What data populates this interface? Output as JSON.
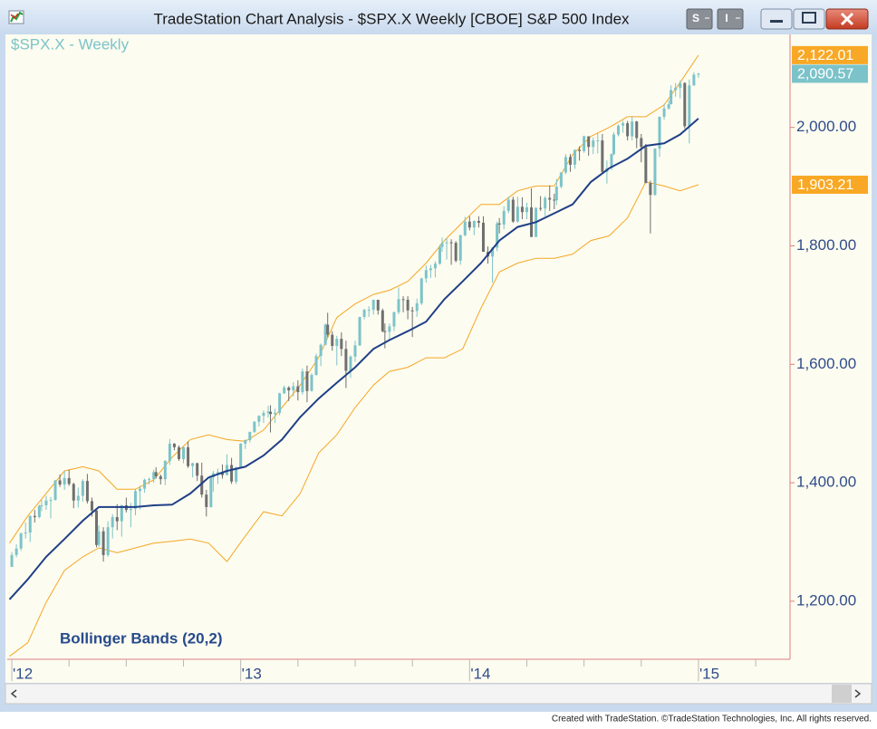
{
  "window": {
    "title": "TradeStation Chart Analysis - $SPX.X Weekly [CBOE] S&P 500 Index",
    "toolbar": [
      "S",
      "I"
    ],
    "footer": "Created with TradeStation. ©TradeStation Technologies, Inc. All rights reserved."
  },
  "chart_data": {
    "type": "candlestick",
    "title": "$SPX.X - Weekly",
    "annotation": "Bollinger Bands (20,2)",
    "xlim": [
      2011.98,
      2015.4
    ],
    "ylim": [
      1102,
      2157
    ],
    "xticks": [
      {
        "value": 2012,
        "label": "'12"
      },
      {
        "value": 2013,
        "label": "'13"
      },
      {
        "value": 2014,
        "label": "'14"
      },
      {
        "value": 2015,
        "label": "'15"
      }
    ],
    "xminor": [
      2012.25,
      2012.5,
      2012.75,
      2013.25,
      2013.5,
      2013.75,
      2014.25,
      2014.5,
      2014.75,
      2015.25
    ],
    "yticks": [
      {
        "value": 1200,
        "label": "1,200.00"
      },
      {
        "value": 1400,
        "label": "1,400.00"
      },
      {
        "value": 1600,
        "label": "1,600.00"
      },
      {
        "value": 1800,
        "label": "1,800.00"
      },
      {
        "value": 2000,
        "label": "2,000.00"
      }
    ],
    "up_color": "#7cc3c9",
    "down_color": "#6f6f6f",
    "x": [
      2012.0,
      2012.02,
      2012.04,
      2012.06,
      2012.08,
      2012.1,
      2012.12,
      2012.13,
      2012.15,
      2012.17,
      2012.19,
      2012.21,
      2012.23,
      2012.25,
      2012.27,
      2012.29,
      2012.31,
      2012.33,
      2012.35,
      2012.37,
      2012.38,
      2012.4,
      2012.42,
      2012.44,
      2012.46,
      2012.48,
      2012.5,
      2012.52,
      2012.54,
      2012.56,
      2012.58,
      2012.6,
      2012.62,
      2012.63,
      2012.65,
      2012.67,
      2012.69,
      2012.71,
      2012.73,
      2012.75,
      2012.77,
      2012.79,
      2012.81,
      2012.83,
      2012.85,
      2012.87,
      2012.88,
      2012.9,
      2012.92,
      2012.94,
      2012.96,
      2012.98,
      2013.0,
      2013.02,
      2013.04,
      2013.06,
      2013.08,
      2013.1,
      2013.12,
      2013.13,
      2013.15,
      2013.17,
      2013.19,
      2013.21,
      2013.23,
      2013.25,
      2013.27,
      2013.29,
      2013.31,
      2013.33,
      2013.35,
      2013.37,
      2013.38,
      2013.4,
      2013.42,
      2013.44,
      2013.46,
      2013.48,
      2013.5,
      2013.52,
      2013.54,
      2013.56,
      2013.58,
      2013.6,
      2013.62,
      2013.63,
      2013.65,
      2013.67,
      2013.69,
      2013.71,
      2013.73,
      2013.75,
      2013.77,
      2013.79,
      2013.81,
      2013.83,
      2013.85,
      2013.87,
      2013.88,
      2013.9,
      2013.92,
      2013.94,
      2013.96,
      2013.98,
      2014.0,
      2014.02,
      2014.04,
      2014.06,
      2014.08,
      2014.1,
      2014.12,
      2014.13,
      2014.15,
      2014.17,
      2014.19,
      2014.21,
      2014.23,
      2014.25,
      2014.27,
      2014.29,
      2014.31,
      2014.33,
      2014.35,
      2014.37,
      2014.38,
      2014.4,
      2014.42,
      2014.44,
      2014.46,
      2014.48,
      2014.5,
      2014.52,
      2014.54,
      2014.56,
      2014.58,
      2014.6,
      2014.62,
      2014.63,
      2014.65,
      2014.67,
      2014.69,
      2014.71,
      2014.73,
      2014.75,
      2014.77,
      2014.79,
      2014.81,
      2014.83,
      2014.85,
      2014.87,
      2014.88,
      2014.9,
      2014.92,
      2014.94,
      2014.96,
      2014.98,
      2015.0
    ],
    "ohlc": [
      [
        1258,
        1283,
        1258,
        1278
      ],
      [
        1278,
        1296,
        1274,
        1289
      ],
      [
        1289,
        1315,
        1285,
        1315
      ],
      [
        1315,
        1333,
        1306,
        1316
      ],
      [
        1316,
        1345,
        1300,
        1344
      ],
      [
        1344,
        1354,
        1333,
        1342
      ],
      [
        1342,
        1363,
        1340,
        1361
      ],
      [
        1361,
        1371,
        1352,
        1362
      ],
      [
        1362,
        1378,
        1354,
        1370
      ],
      [
        1370,
        1376,
        1340,
        1371
      ],
      [
        1371,
        1405,
        1370,
        1404
      ],
      [
        1404,
        1414,
        1393,
        1397
      ],
      [
        1397,
        1420,
        1388,
        1408
      ],
      [
        1408,
        1422,
        1395,
        1398
      ],
      [
        1398,
        1400,
        1357,
        1370
      ],
      [
        1370,
        1392,
        1358,
        1378
      ],
      [
        1378,
        1406,
        1368,
        1403
      ],
      [
        1403,
        1415,
        1365,
        1369
      ],
      [
        1369,
        1375,
        1343,
        1353
      ],
      [
        1353,
        1356,
        1291,
        1295
      ],
      [
        1295,
        1328,
        1292,
        1318
      ],
      [
        1318,
        1325,
        1267,
        1278
      ],
      [
        1278,
        1335,
        1275,
        1325
      ],
      [
        1325,
        1347,
        1306,
        1342
      ],
      [
        1342,
        1364,
        1320,
        1335
      ],
      [
        1335,
        1363,
        1309,
        1362
      ],
      [
        1362,
        1375,
        1350,
        1354
      ],
      [
        1354,
        1366,
        1325,
        1356
      ],
      [
        1356,
        1389,
        1345,
        1386
      ],
      [
        1386,
        1395,
        1355,
        1390
      ],
      [
        1390,
        1407,
        1383,
        1405
      ],
      [
        1405,
        1409,
        1397,
        1406
      ],
      [
        1406,
        1422,
        1400,
        1418
      ],
      [
        1418,
        1426,
        1407,
        1411
      ],
      [
        1411,
        1414,
        1397,
        1406
      ],
      [
        1406,
        1438,
        1396,
        1437
      ],
      [
        1437,
        1474,
        1430,
        1466
      ],
      [
        1466,
        1467,
        1455,
        1460
      ],
      [
        1460,
        1463,
        1437,
        1440
      ],
      [
        1440,
        1462,
        1433,
        1460
      ],
      [
        1460,
        1470,
        1425,
        1428
      ],
      [
        1428,
        1434,
        1409,
        1433
      ],
      [
        1433,
        1434,
        1403,
        1412
      ],
      [
        1412,
        1434,
        1375,
        1380
      ],
      [
        1380,
        1388,
        1343,
        1359
      ],
      [
        1359,
        1409,
        1358,
        1409
      ],
      [
        1409,
        1420,
        1385,
        1416
      ],
      [
        1416,
        1424,
        1398,
        1418
      ],
      [
        1418,
        1431,
        1407,
        1413
      ],
      [
        1413,
        1448,
        1413,
        1430
      ],
      [
        1430,
        1442,
        1398,
        1402
      ],
      [
        1402,
        1427,
        1398,
        1426
      ],
      [
        1426,
        1467,
        1426,
        1466
      ],
      [
        1466,
        1473,
        1457,
        1472
      ],
      [
        1472,
        1486,
        1468,
        1486
      ],
      [
        1486,
        1504,
        1484,
        1503
      ],
      [
        1503,
        1514,
        1495,
        1513
      ],
      [
        1513,
        1522,
        1501,
        1518
      ],
      [
        1518,
        1530,
        1510,
        1520
      ],
      [
        1520,
        1531,
        1485,
        1516
      ],
      [
        1516,
        1525,
        1501,
        1518
      ],
      [
        1518,
        1552,
        1514,
        1551
      ],
      [
        1551,
        1564,
        1550,
        1561
      ],
      [
        1561,
        1563,
        1538,
        1556
      ],
      [
        1556,
        1570,
        1546,
        1563
      ],
      [
        1563,
        1573,
        1539,
        1553
      ],
      [
        1553,
        1593,
        1549,
        1588
      ],
      [
        1588,
        1598,
        1536,
        1555
      ],
      [
        1555,
        1585,
        1554,
        1582
      ],
      [
        1582,
        1618,
        1581,
        1614
      ],
      [
        1614,
        1635,
        1597,
        1633
      ],
      [
        1633,
        1669,
        1632,
        1667
      ],
      [
        1667,
        1687,
        1646,
        1650
      ],
      [
        1650,
        1656,
        1623,
        1631
      ],
      [
        1631,
        1648,
        1598,
        1643
      ],
      [
        1643,
        1654,
        1614,
        1626
      ],
      [
        1626,
        1640,
        1560,
        1589
      ],
      [
        1589,
        1615,
        1577,
        1613
      ],
      [
        1613,
        1640,
        1604,
        1632
      ],
      [
        1632,
        1680,
        1631,
        1680
      ],
      [
        1680,
        1694,
        1676,
        1692
      ],
      [
        1692,
        1698,
        1680,
        1692
      ],
      [
        1692,
        1709,
        1684,
        1709
      ],
      [
        1709,
        1709,
        1684,
        1691
      ],
      [
        1691,
        1694,
        1654,
        1656
      ],
      [
        1656,
        1669,
        1627,
        1655
      ],
      [
        1655,
        1669,
        1640,
        1664
      ],
      [
        1664,
        1689,
        1656,
        1688
      ],
      [
        1688,
        1730,
        1685,
        1710
      ],
      [
        1710,
        1715,
        1688,
        1709
      ],
      [
        1709,
        1715,
        1676,
        1691
      ],
      [
        1691,
        1697,
        1646,
        1690
      ],
      [
        1690,
        1711,
        1680,
        1703
      ],
      [
        1703,
        1746,
        1700,
        1745
      ],
      [
        1745,
        1767,
        1738,
        1759
      ],
      [
        1759,
        1768,
        1746,
        1762
      ],
      [
        1762,
        1774,
        1747,
        1770
      ],
      [
        1770,
        1802,
        1768,
        1798
      ],
      [
        1798,
        1814,
        1790,
        1805
      ],
      [
        1805,
        1813,
        1777,
        1806
      ],
      [
        1806,
        1811,
        1768,
        1805
      ],
      [
        1805,
        1808,
        1772,
        1775
      ],
      [
        1775,
        1819,
        1768,
        1818
      ],
      [
        1818,
        1849,
        1816,
        1841
      ],
      [
        1841,
        1850,
        1826,
        1831
      ],
      [
        1831,
        1843,
        1818,
        1842
      ],
      [
        1842,
        1850,
        1831,
        1839
      ],
      [
        1839,
        1850,
        1790,
        1790
      ],
      [
        1790,
        1799,
        1770,
        1782
      ],
      [
        1782,
        1798,
        1738,
        1797
      ],
      [
        1797,
        1841,
        1791,
        1838
      ],
      [
        1838,
        1847,
        1821,
        1836
      ],
      [
        1836,
        1867,
        1828,
        1859
      ],
      [
        1859,
        1883,
        1855,
        1878
      ],
      [
        1878,
        1883,
        1839,
        1841
      ],
      [
        1841,
        1883,
        1839,
        1866
      ],
      [
        1866,
        1882,
        1845,
        1857
      ],
      [
        1857,
        1873,
        1845,
        1865
      ],
      [
        1865,
        1897,
        1815,
        1815
      ],
      [
        1815,
        1865,
        1815,
        1864
      ],
      [
        1864,
        1884,
        1859,
        1863
      ],
      [
        1863,
        1884,
        1850,
        1881
      ],
      [
        1881,
        1902,
        1859,
        1878
      ],
      [
        1878,
        1888,
        1862,
        1877
      ],
      [
        1877,
        1913,
        1869,
        1900
      ],
      [
        1900,
        1924,
        1897,
        1924
      ],
      [
        1924,
        1955,
        1921,
        1950
      ],
      [
        1950,
        1955,
        1925,
        1937
      ],
      [
        1937,
        1963,
        1930,
        1962
      ],
      [
        1962,
        1968,
        1944,
        1960
      ],
      [
        1960,
        1986,
        1957,
        1985
      ],
      [
        1985,
        1985,
        1952,
        1967
      ],
      [
        1967,
        1983,
        1955,
        1978
      ],
      [
        1978,
        1991,
        1956,
        1978
      ],
      [
        1978,
        1989,
        1921,
        1925
      ],
      [
        1925,
        1944,
        1905,
        1931
      ],
      [
        1931,
        1956,
        1928,
        1955
      ],
      [
        1955,
        1992,
        1953,
        1988
      ],
      [
        1988,
        2005,
        1985,
        2003
      ],
      [
        2003,
        2011,
        1991,
        2007
      ],
      [
        2007,
        2011,
        1978,
        1985
      ],
      [
        1985,
        2019,
        1978,
        2010
      ],
      [
        2010,
        2011,
        1965,
        1982
      ],
      [
        1982,
        1989,
        1941,
        1967
      ],
      [
        1967,
        1972,
        1906,
        1906
      ],
      [
        1906,
        1910,
        1821,
        1886
      ],
      [
        1886,
        1965,
        1885,
        1964
      ],
      [
        1964,
        2018,
        1950,
        2018
      ],
      [
        2018,
        2040,
        2013,
        2032
      ],
      [
        2032,
        2046,
        2030,
        2039
      ],
      [
        2039,
        2071,
        2039,
        2063
      ],
      [
        2063,
        2075,
        2052,
        2067
      ],
      [
        2067,
        2079,
        2049,
        2075
      ],
      [
        2075,
        2076,
        1998,
        2002
      ],
      [
        2002,
        2081,
        1973,
        2071
      ],
      [
        2071,
        2093,
        2070,
        2089
      ],
      [
        2089,
        2092,
        2084,
        2090.57
      ]
    ],
    "bands": {
      "band_color": "#f5a623",
      "middle_color": "#1f3f87",
      "x": [
        2011.99,
        2012.07,
        2012.15,
        2012.23,
        2012.31,
        2012.38,
        2012.46,
        2012.54,
        2012.62,
        2012.7,
        2012.78,
        2012.86,
        2012.94,
        2013.02,
        2013.1,
        2013.18,
        2013.26,
        2013.34,
        2013.42,
        2013.5,
        2013.58,
        2013.65,
        2013.73,
        2013.81,
        2013.89,
        2013.97,
        2014.05,
        2014.13,
        2014.21,
        2014.29,
        2014.37,
        2014.45,
        2014.53,
        2014.61,
        2014.69,
        2014.77,
        2014.85,
        2014.92,
        2015.0
      ],
      "upper": [
        1298,
        1344,
        1382,
        1420,
        1427,
        1420,
        1389,
        1389,
        1405,
        1443,
        1473,
        1481,
        1473,
        1470,
        1489,
        1527,
        1565,
        1611,
        1679,
        1702,
        1718,
        1725,
        1740,
        1771,
        1809,
        1840,
        1870,
        1870,
        1893,
        1901,
        1901,
        1954,
        1985,
        2000,
        2018,
        2018,
        2038,
        2076,
        2122.01
      ],
      "middle": [
        1203,
        1237,
        1275,
        1305,
        1336,
        1359,
        1359,
        1359,
        1362,
        1363,
        1382,
        1409,
        1420,
        1427,
        1446,
        1473,
        1511,
        1542,
        1569,
        1595,
        1626,
        1641,
        1656,
        1672,
        1710,
        1740,
        1771,
        1809,
        1832,
        1840,
        1855,
        1870,
        1908,
        1931,
        1947,
        1969,
        1973,
        1988,
        2015
      ],
      "lower": [
        1107,
        1130,
        1198,
        1252,
        1275,
        1290,
        1282,
        1290,
        1298,
        1301,
        1305,
        1298,
        1267,
        1310,
        1351,
        1344,
        1382,
        1450,
        1481,
        1527,
        1565,
        1588,
        1595,
        1611,
        1611,
        1626,
        1695,
        1756,
        1771,
        1779,
        1779,
        1786,
        1809,
        1817,
        1847,
        1908,
        1901,
        1893,
        1903.21
      ]
    },
    "markers": [
      {
        "value": 2122.01,
        "label": "2,122.01",
        "color": "#f9a825"
      },
      {
        "value": 2090.57,
        "label": "2,090.57",
        "color": "#7cc3c9"
      },
      {
        "value": 1903.21,
        "label": "1,903.21",
        "color": "#f9a825"
      }
    ]
  }
}
